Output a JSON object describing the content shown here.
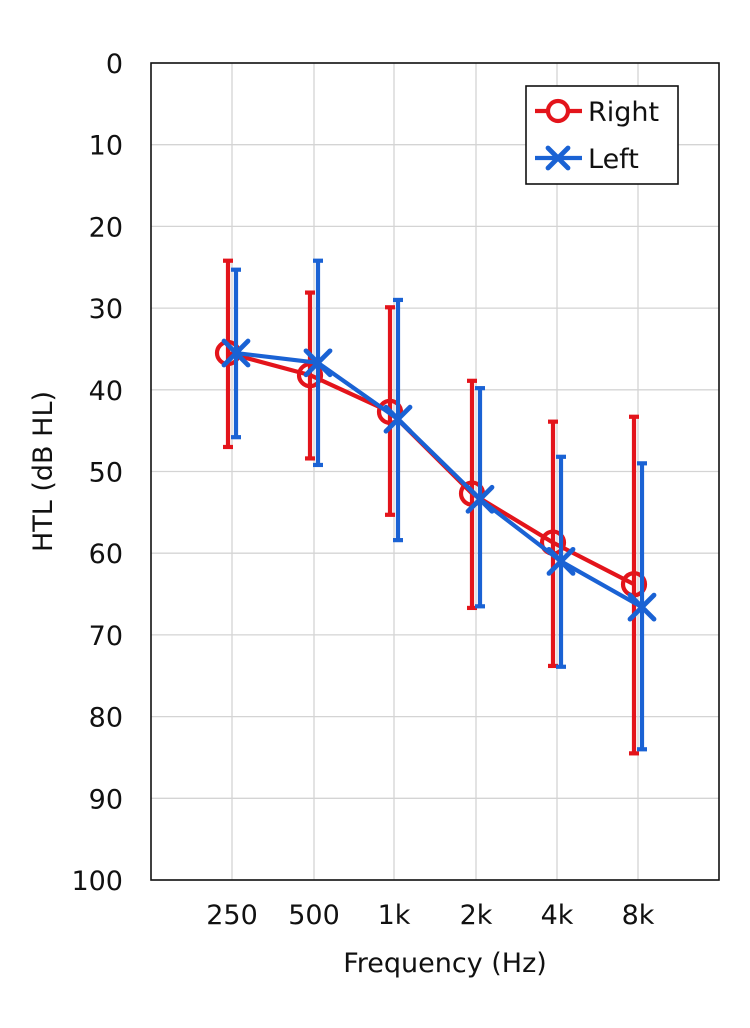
{
  "chart_data": {
    "type": "line",
    "xlabel": "Frequency (Hz)",
    "ylabel": "HTL (dB HL)",
    "categories": [
      "250",
      "500",
      "1k",
      "2k",
      "4k",
      "8k"
    ],
    "ylim": [
      0,
      100
    ],
    "y_inverted": true,
    "y_ticks": [
      0,
      10,
      20,
      30,
      40,
      50,
      60,
      70,
      80,
      90,
      100
    ],
    "grid": true,
    "legend_position": "top-right",
    "series": [
      {
        "name": "Right",
        "color": "#e3141b",
        "marker": "circle",
        "values": [
          35.5,
          38.2,
          42.7,
          52.7,
          58.7,
          63.8
        ],
        "error_low": [
          24.2,
          28.1,
          29.9,
          38.9,
          43.9,
          43.3
        ],
        "error_high": [
          47.0,
          48.4,
          55.3,
          66.7,
          73.8,
          84.5
        ]
      },
      {
        "name": "Left",
        "color": "#1a62d4",
        "marker": "x",
        "values": [
          35.5,
          36.7,
          43.6,
          53.4,
          61.0,
          66.6
        ],
        "error_low": [
          25.3,
          24.2,
          29.0,
          39.8,
          48.2,
          49.0
        ],
        "error_high": [
          45.8,
          49.2,
          58.4,
          66.5,
          73.9,
          84.0
        ]
      }
    ]
  }
}
